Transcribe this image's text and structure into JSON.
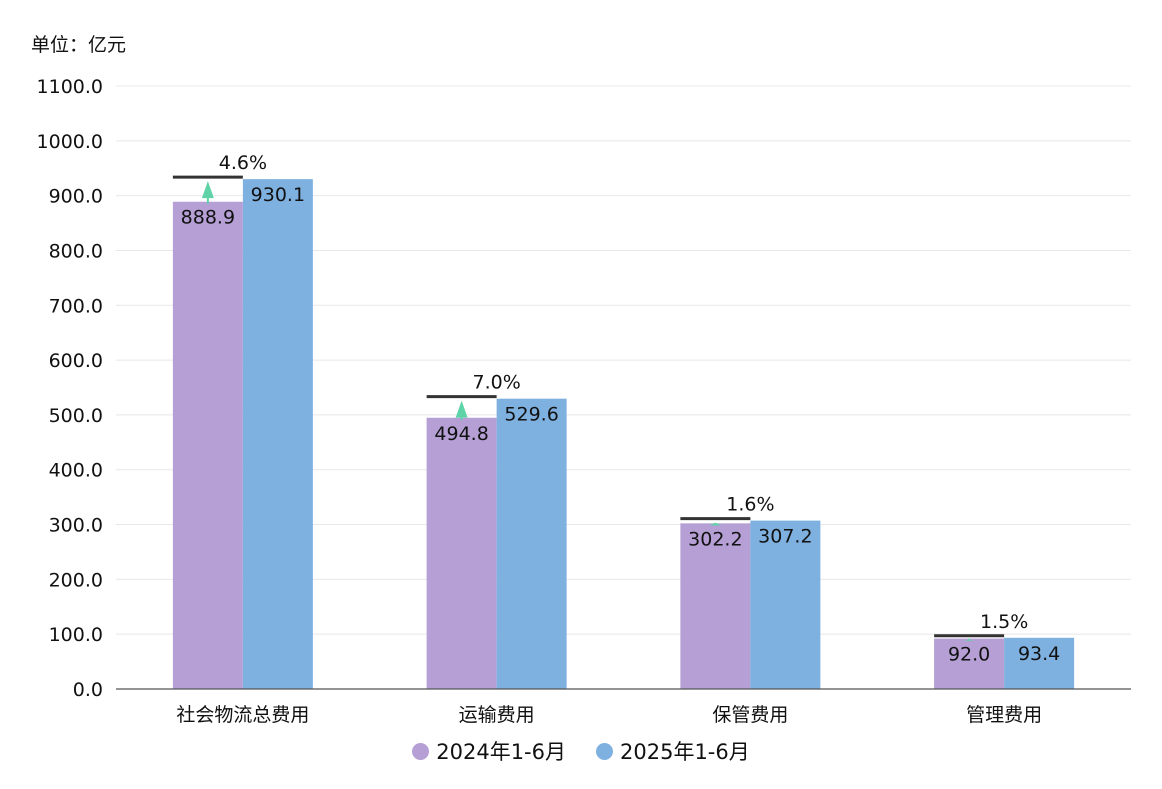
{
  "unit_label": "单位：亿元",
  "chart_data": {
    "type": "bar",
    "categories": [
      "社会物流总费用",
      "运输费用",
      "保管费用",
      "管理费用"
    ],
    "series": [
      {
        "name": "2024年1-6月",
        "values": [
          888.9,
          494.8,
          302.2,
          92.0
        ],
        "labels": [
          "888.9",
          "494.8",
          "302.2",
          "92.0"
        ],
        "color": "#b59fd5"
      },
      {
        "name": "2025年1-6月",
        "values": [
          930.1,
          529.6,
          307.2,
          93.4
        ],
        "labels": [
          "930.1",
          "529.6",
          "307.2",
          "93.4"
        ],
        "color": "#7fb1e0"
      }
    ],
    "growth": [
      "4.6%",
      "7.0%",
      "1.6%",
      "1.5%"
    ],
    "growth_arrow_color": "#5fd3a8",
    "ylim": [
      0,
      1100
    ],
    "yticks": [
      0,
      100,
      200,
      300,
      400,
      500,
      600,
      700,
      800,
      900,
      1000,
      1100
    ],
    "ytick_labels": [
      "0.0",
      "100.0",
      "200.0",
      "300.0",
      "400.0",
      "500.0",
      "600.0",
      "700.0",
      "800.0",
      "900.0",
      "1000.0",
      "1100.0"
    ],
    "grid": true,
    "legend_position": "bottom-center"
  }
}
